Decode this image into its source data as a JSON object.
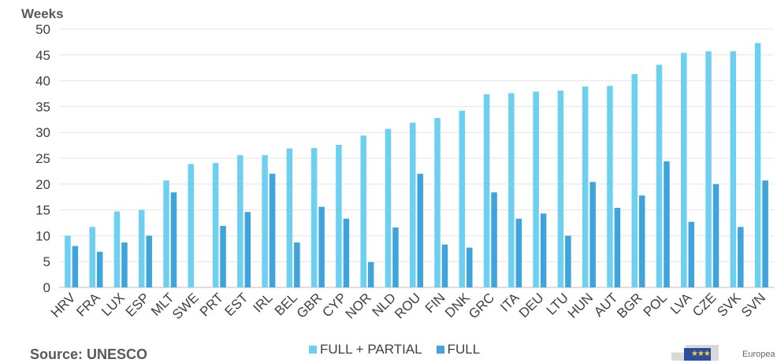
{
  "chart_data": {
    "type": "bar",
    "ylabel": "Weeks",
    "ylim": [
      0,
      50
    ],
    "yticks": [
      0,
      5,
      10,
      15,
      20,
      25,
      30,
      35,
      40,
      45,
      50
    ],
    "grid": true,
    "legend_position": "bottom",
    "categories": [
      "HRV",
      "FRA",
      "LUX",
      "ESP",
      "MLT",
      "SWE",
      "PRT",
      "EST",
      "IRL",
      "BEL",
      "GBR",
      "CYP",
      "NOR",
      "NLD",
      "ROU",
      "FIN",
      "DNK",
      "GRC",
      "ITA",
      "DEU",
      "LTU",
      "HUN",
      "AUT",
      "BGR",
      "POL",
      "LVA",
      "CZE",
      "SVK",
      "SVN"
    ],
    "series": [
      {
        "name": "FULL + PARTIAL",
        "color": "#6dd0f0",
        "values": [
          10.0,
          11.7,
          14.7,
          15.0,
          20.7,
          23.9,
          24.1,
          25.6,
          25.6,
          26.9,
          27.0,
          27.6,
          29.4,
          30.7,
          31.9,
          32.8,
          34.2,
          37.4,
          37.6,
          37.9,
          38.1,
          38.9,
          39.0,
          41.3,
          43.1,
          45.4,
          45.7,
          45.7,
          47.3
        ]
      },
      {
        "name": "FULL",
        "color": "#3fa4dc",
        "values": [
          8.0,
          6.9,
          8.7,
          10.0,
          18.4,
          0,
          11.9,
          14.6,
          22.0,
          8.7,
          15.6,
          13.3,
          4.9,
          11.6,
          22.0,
          8.3,
          7.7,
          18.4,
          13.3,
          14.3,
          10.0,
          20.4,
          15.4,
          17.8,
          24.4,
          12.7,
          20.0,
          11.7,
          20.7
        ]
      }
    ]
  },
  "source": "Source: UNESCO",
  "logo": {
    "text": "Europea",
    "colors": {
      "flag": "#2c4ea0",
      "stars": "#ffd617"
    }
  }
}
